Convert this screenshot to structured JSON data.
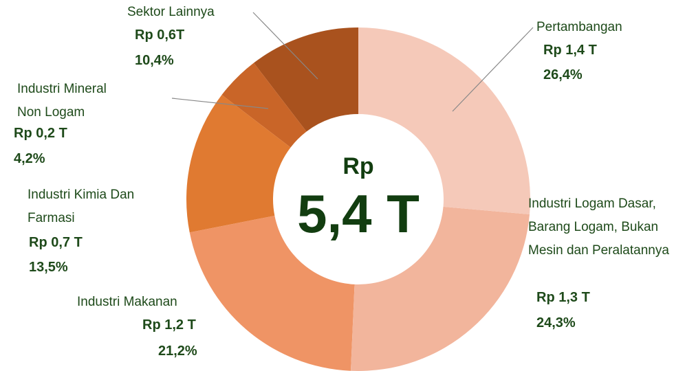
{
  "chart_data": {
    "type": "donut",
    "center_prefix": "Rp",
    "center_value": "5,4 T",
    "categories": [
      "Pertambangan",
      "Industri Logam Dasar, Barang Logam, Bukan Mesin dan Peralatannya",
      "Industri Makanan",
      "Industri Kimia Dan Farmasi",
      "Industri Mineral Non Logam",
      "Sektor Lainnya"
    ],
    "values": [
      26.4,
      24.3,
      21.2,
      13.5,
      4.2,
      10.4
    ],
    "value_labels": [
      "26,4%",
      "24,3%",
      "21,2%",
      "13,5%",
      "4,2%",
      "10,4%"
    ],
    "amount_labels": [
      "Rp 1,4 T",
      "Rp 1,3 T",
      "Rp 1,2 T",
      "Rp 0,7 T",
      "Rp 0,2 T",
      "Rp 0,6T"
    ],
    "colors": [
      "#f5c9b9",
      "#f2b59c",
      "#ef9465",
      "#e07a31",
      "#c96528",
      "#a9521e"
    ]
  }
}
